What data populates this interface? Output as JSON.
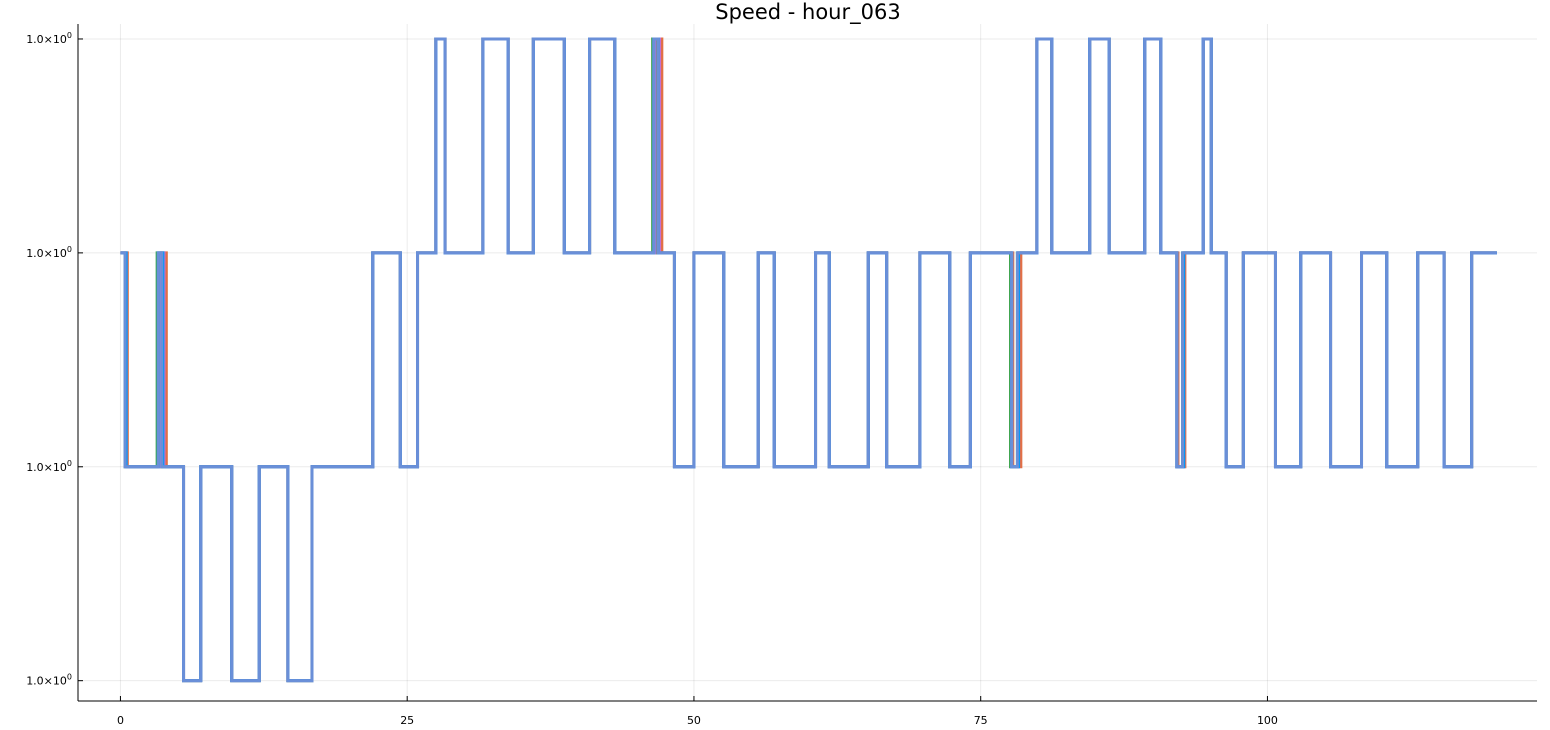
{
  "chart_data": {
    "type": "line",
    "step": true,
    "title": "Speed - hour_063",
    "xlabel": "",
    "ylabel": "",
    "xlim": [
      -3.7,
      123.5
    ],
    "x_ticks": [
      0,
      25,
      50,
      75,
      100
    ],
    "x_tick_labels": [
      "0",
      "25",
      "50",
      "75",
      "100"
    ],
    "y_levels": [
      0,
      1,
      2,
      3
    ],
    "y_tick_labels": [
      {
        "base": "1.0×10",
        "exp": "0"
      },
      {
        "base": "1.0×10",
        "exp": "0"
      },
      {
        "base": "1.0×10",
        "exp": "0"
      },
      {
        "base": "1.0×10",
        "exp": "0"
      }
    ],
    "ylim": [
      -0.095,
      3.07
    ],
    "grid": true,
    "legend": "none",
    "series": [
      {
        "color": "#e26f46",
        "steps": [
          [
            0,
            2
          ],
          [
            0.6,
            1
          ],
          [
            3.6,
            2
          ],
          [
            4,
            1
          ],
          [
            5.5,
            0
          ],
          [
            7,
            1
          ],
          [
            9.7,
            0
          ],
          [
            12.1,
            1
          ],
          [
            14.6,
            0
          ],
          [
            16.7,
            1
          ],
          [
            22,
            2
          ],
          [
            24.4,
            1
          ],
          [
            25.9,
            2
          ],
          [
            27.5,
            3
          ],
          [
            28.3,
            2
          ],
          [
            31.6,
            3
          ],
          [
            33.8,
            2
          ],
          [
            36,
            3
          ],
          [
            38.7,
            2
          ],
          [
            40.9,
            3
          ],
          [
            43.1,
            2
          ],
          [
            46.8,
            3
          ],
          [
            47.2,
            2
          ],
          [
            48.3,
            1
          ],
          [
            50,
            2
          ],
          [
            52.6,
            1
          ],
          [
            55.6,
            2
          ],
          [
            57,
            1
          ],
          [
            60.6,
            2
          ],
          [
            61.8,
            1
          ],
          [
            65.2,
            2
          ],
          [
            66.8,
            1
          ],
          [
            69.7,
            2
          ],
          [
            72.3,
            1
          ],
          [
            74.1,
            2
          ],
          [
            77.8,
            1
          ],
          [
            78.5,
            2
          ],
          [
            79.9,
            3
          ],
          [
            81.2,
            2
          ],
          [
            84.5,
            3
          ],
          [
            86.2,
            2
          ],
          [
            89.3,
            3
          ],
          [
            90.7,
            2
          ],
          [
            92.2,
            1
          ],
          [
            92.8,
            2
          ],
          [
            94.4,
            3
          ],
          [
            95.1,
            2
          ],
          [
            96.4,
            1
          ],
          [
            97.9,
            2
          ],
          [
            100.7,
            1
          ],
          [
            102.9,
            2
          ],
          [
            105.5,
            1
          ],
          [
            108.2,
            2
          ],
          [
            110.4,
            1
          ],
          [
            113.1,
            2
          ],
          [
            115.4,
            1
          ],
          [
            117.8,
            2
          ],
          [
            120,
            2
          ]
        ]
      },
      {
        "color": "#3da44d",
        "steps": [
          [
            0,
            2
          ],
          [
            0.4,
            1
          ],
          [
            3.2,
            2
          ],
          [
            3.6,
            1
          ],
          [
            5.5,
            0
          ],
          [
            7,
            1
          ],
          [
            9.7,
            0
          ],
          [
            12.1,
            1
          ],
          [
            14.6,
            0
          ],
          [
            16.7,
            1
          ],
          [
            22,
            2
          ],
          [
            24.4,
            1
          ],
          [
            25.9,
            2
          ],
          [
            27.5,
            3
          ],
          [
            28.3,
            2
          ],
          [
            31.6,
            3
          ],
          [
            33.8,
            2
          ],
          [
            36,
            3
          ],
          [
            38.7,
            2
          ],
          [
            40.9,
            3
          ],
          [
            43.1,
            2
          ],
          [
            46.4,
            3
          ],
          [
            46.8,
            2
          ],
          [
            48.3,
            1
          ],
          [
            50,
            2
          ],
          [
            52.6,
            1
          ],
          [
            55.6,
            2
          ],
          [
            57,
            1
          ],
          [
            60.6,
            2
          ],
          [
            61.8,
            1
          ],
          [
            65.2,
            2
          ],
          [
            66.8,
            1
          ],
          [
            69.7,
            2
          ],
          [
            72.3,
            1
          ],
          [
            74.1,
            2
          ],
          [
            77.6,
            1
          ],
          [
            78.2,
            2
          ],
          [
            79.9,
            3
          ],
          [
            81.2,
            2
          ],
          [
            84.5,
            3
          ],
          [
            86.2,
            2
          ],
          [
            89.3,
            3
          ],
          [
            90.7,
            2
          ],
          [
            92.1,
            1
          ],
          [
            92.6,
            2
          ],
          [
            94.4,
            3
          ],
          [
            95.1,
            2
          ],
          [
            96.4,
            1
          ],
          [
            97.9,
            2
          ],
          [
            100.7,
            1
          ],
          [
            102.9,
            2
          ],
          [
            105.5,
            1
          ],
          [
            108.2,
            2
          ],
          [
            110.4,
            1
          ],
          [
            113.1,
            2
          ],
          [
            115.4,
            1
          ],
          [
            117.8,
            2
          ],
          [
            120,
            2
          ]
        ]
      },
      {
        "color": "#c271d2",
        "steps": [
          [
            0,
            2
          ],
          [
            0.5,
            1
          ],
          [
            3.4,
            2
          ],
          [
            3.8,
            1
          ],
          [
            5.5,
            0
          ],
          [
            7,
            1
          ],
          [
            9.7,
            0
          ],
          [
            12.1,
            1
          ],
          [
            14.6,
            0
          ],
          [
            16.7,
            1
          ],
          [
            22,
            2
          ],
          [
            24.4,
            1
          ],
          [
            25.9,
            2
          ],
          [
            27.5,
            3
          ],
          [
            28.3,
            2
          ],
          [
            31.6,
            3
          ],
          [
            33.8,
            2
          ],
          [
            36,
            3
          ],
          [
            38.7,
            2
          ],
          [
            40.9,
            3
          ],
          [
            43.1,
            2
          ],
          [
            46.6,
            3
          ],
          [
            47,
            2
          ],
          [
            48.3,
            1
          ],
          [
            50,
            2
          ],
          [
            52.6,
            1
          ],
          [
            55.6,
            2
          ],
          [
            57,
            1
          ],
          [
            60.6,
            2
          ],
          [
            61.8,
            1
          ],
          [
            65.2,
            2
          ],
          [
            66.8,
            1
          ],
          [
            69.7,
            2
          ],
          [
            72.3,
            1
          ],
          [
            74.1,
            2
          ],
          [
            77.7,
            1
          ],
          [
            78.3,
            2
          ],
          [
            79.9,
            3
          ],
          [
            81.2,
            2
          ],
          [
            84.5,
            3
          ],
          [
            86.2,
            2
          ],
          [
            89.3,
            3
          ],
          [
            90.7,
            2
          ],
          [
            92.1,
            1
          ],
          [
            92.7,
            2
          ],
          [
            94.4,
            3
          ],
          [
            95.1,
            2
          ],
          [
            96.4,
            1
          ],
          [
            97.9,
            2
          ],
          [
            100.7,
            1
          ],
          [
            102.9,
            2
          ],
          [
            105.5,
            1
          ],
          [
            108.2,
            2
          ],
          [
            110.4,
            1
          ],
          [
            113.1,
            2
          ],
          [
            115.4,
            1
          ],
          [
            117.8,
            2
          ],
          [
            120,
            2
          ]
        ]
      },
      {
        "color": "#009af9",
        "steps": [
          [
            0,
            2
          ],
          [
            0.5,
            1
          ],
          [
            3.3,
            2
          ],
          [
            3.7,
            1
          ],
          [
            5.5,
            0
          ],
          [
            7,
            1
          ],
          [
            9.7,
            0
          ],
          [
            12.1,
            1
          ],
          [
            14.6,
            0
          ],
          [
            16.7,
            1
          ],
          [
            22,
            2
          ],
          [
            24.4,
            1
          ],
          [
            25.9,
            2
          ],
          [
            27.5,
            3
          ],
          [
            28.3,
            2
          ],
          [
            31.6,
            3
          ],
          [
            33.8,
            2
          ],
          [
            36,
            3
          ],
          [
            38.7,
            2
          ],
          [
            40.9,
            3
          ],
          [
            43.1,
            2
          ],
          [
            46.5,
            3
          ],
          [
            46.9,
            2
          ],
          [
            48.3,
            1
          ],
          [
            50,
            2
          ],
          [
            52.6,
            1
          ],
          [
            55.6,
            2
          ],
          [
            57,
            1
          ],
          [
            60.6,
            2
          ],
          [
            61.8,
            1
          ],
          [
            65.2,
            2
          ],
          [
            66.8,
            1
          ],
          [
            69.7,
            2
          ],
          [
            72.3,
            1
          ],
          [
            74.1,
            2
          ],
          [
            77.7,
            1
          ],
          [
            78.3,
            2
          ],
          [
            79.9,
            3
          ],
          [
            81.2,
            2
          ],
          [
            84.5,
            3
          ],
          [
            86.2,
            2
          ],
          [
            89.3,
            3
          ],
          [
            90.7,
            2
          ],
          [
            92.1,
            1
          ],
          [
            92.7,
            2
          ],
          [
            94.4,
            3
          ],
          [
            95.1,
            2
          ],
          [
            96.4,
            1
          ],
          [
            97.9,
            2
          ],
          [
            100.7,
            1
          ],
          [
            102.9,
            2
          ],
          [
            105.5,
            1
          ],
          [
            108.2,
            2
          ],
          [
            110.4,
            1
          ],
          [
            113.1,
            2
          ],
          [
            115.4,
            1
          ],
          [
            117.8,
            2
          ],
          [
            120,
            2
          ]
        ]
      },
      {
        "color": "#6a8fd8",
        "steps": [
          [
            0,
            2
          ],
          [
            0.4,
            1
          ],
          [
            3.3,
            2
          ],
          [
            3.6,
            1
          ],
          [
            5.5,
            0
          ],
          [
            7,
            1
          ],
          [
            9.7,
            0
          ],
          [
            12.1,
            1
          ],
          [
            14.6,
            0
          ],
          [
            16.7,
            1
          ],
          [
            22,
            2
          ],
          [
            24.4,
            1
          ],
          [
            25.9,
            2
          ],
          [
            27.5,
            3
          ],
          [
            28.3,
            2
          ],
          [
            31.6,
            3
          ],
          [
            33.8,
            2
          ],
          [
            36,
            3
          ],
          [
            38.7,
            2
          ],
          [
            40.9,
            3
          ],
          [
            43.1,
            2
          ],
          [
            46.5,
            3
          ],
          [
            46.9,
            2
          ],
          [
            48.3,
            1
          ],
          [
            50,
            2
          ],
          [
            52.6,
            1
          ],
          [
            55.6,
            2
          ],
          [
            57,
            1
          ],
          [
            60.6,
            2
          ],
          [
            61.8,
            1
          ],
          [
            65.2,
            2
          ],
          [
            66.8,
            1
          ],
          [
            69.7,
            2
          ],
          [
            72.3,
            1
          ],
          [
            74.1,
            2
          ],
          [
            77.7,
            1
          ],
          [
            78.2,
            2
          ],
          [
            79.9,
            3
          ],
          [
            81.2,
            2
          ],
          [
            84.5,
            3
          ],
          [
            86.2,
            2
          ],
          [
            89.3,
            3
          ],
          [
            90.7,
            2
          ],
          [
            92.1,
            1
          ],
          [
            92.6,
            2
          ],
          [
            94.4,
            3
          ],
          [
            95.1,
            2
          ],
          [
            96.4,
            1
          ],
          [
            97.9,
            2
          ],
          [
            100.7,
            1
          ],
          [
            102.9,
            2
          ],
          [
            105.5,
            1
          ],
          [
            108.2,
            2
          ],
          [
            110.4,
            1
          ],
          [
            113.1,
            2
          ],
          [
            115.4,
            1
          ],
          [
            117.8,
            2
          ],
          [
            120,
            2
          ]
        ]
      }
    ]
  }
}
